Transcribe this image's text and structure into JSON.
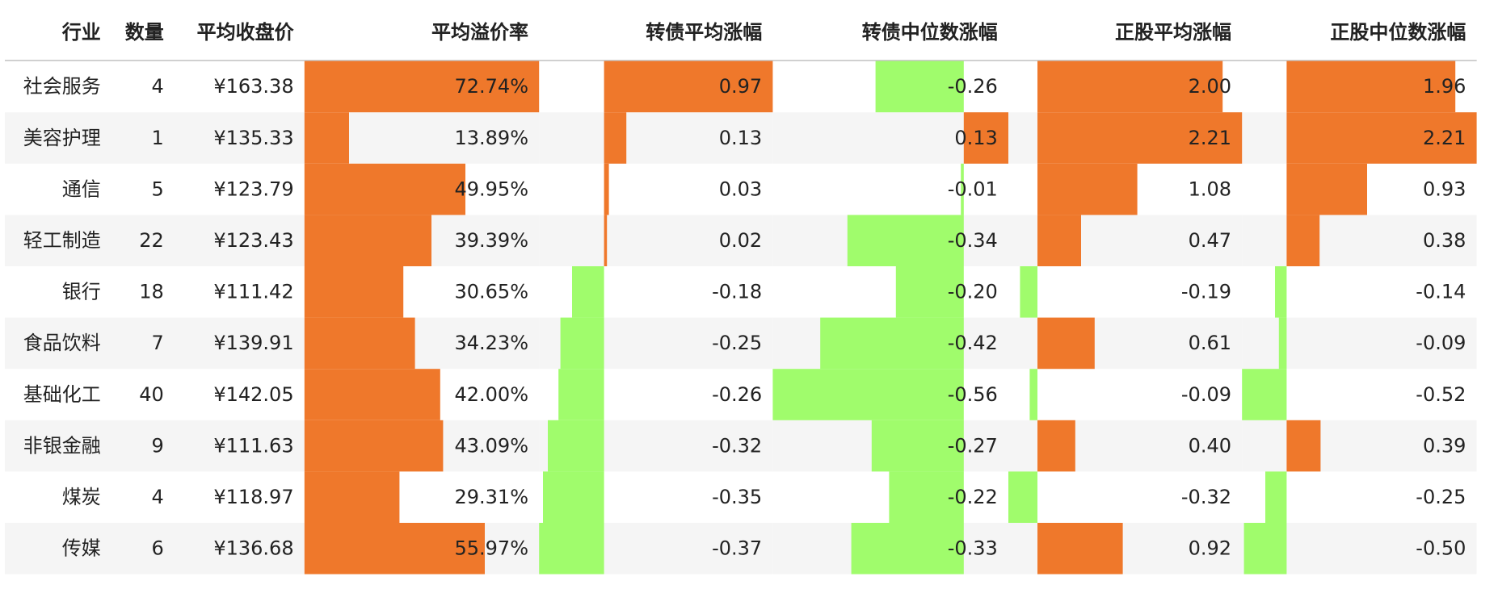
{
  "table": {
    "headers": [
      "行业",
      "数量",
      "平均收盘价",
      "平均溢价率",
      "转债平均涨幅",
      "转债中位数涨幅",
      "正股平均涨幅",
      "正股中位数涨幅"
    ],
    "rows": [
      [
        "社会服务",
        "4",
        "¥163.38",
        "72.74%",
        "0.97",
        "-0.26",
        "2.00",
        "1.96"
      ],
      [
        "美容护理",
        "1",
        "¥135.33",
        "13.89%",
        "0.13",
        "0.13",
        "2.21",
        "2.21"
      ],
      [
        "通信",
        "5",
        "¥123.79",
        "49.95%",
        "0.03",
        "-0.01",
        "1.08",
        "0.93"
      ],
      [
        "轻工制造",
        "22",
        "¥123.43",
        "39.39%",
        "0.02",
        "-0.34",
        "0.47",
        "0.38"
      ],
      [
        "银行",
        "18",
        "¥111.42",
        "30.65%",
        "-0.18",
        "-0.20",
        "-0.19",
        "-0.14"
      ],
      [
        "食品饮料",
        "7",
        "¥139.91",
        "34.23%",
        "-0.25",
        "-0.42",
        "0.61",
        "-0.09"
      ],
      [
        "基础化工",
        "40",
        "¥142.05",
        "42.00%",
        "-0.26",
        "-0.56",
        "-0.09",
        "-0.52"
      ],
      [
        "非银金融",
        "9",
        "¥111.63",
        "43.09%",
        "-0.32",
        "-0.27",
        "0.40",
        "0.39"
      ],
      [
        "煤炭",
        "4",
        "¥118.97",
        "29.31%",
        "-0.35",
        "-0.22",
        "-0.32",
        "-0.25"
      ],
      [
        "传媒",
        "6",
        "¥136.68",
        "55.97%",
        "-0.37",
        "-0.33",
        "0.92",
        "-0.50"
      ]
    ]
  }
}
